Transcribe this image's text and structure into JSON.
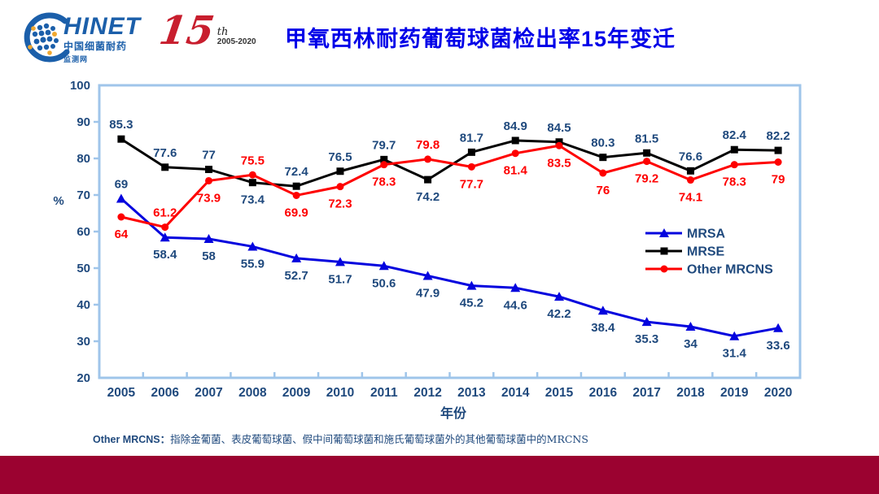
{
  "header": {
    "logo": {
      "brand": "HINET",
      "subtitle1": "中国细菌耐药",
      "subtitle2": "监测网",
      "anniversary_number": "15",
      "anniversary_suffix": "th",
      "anniversary_years": "2005-2020"
    },
    "title": "甲氧西林耐药葡萄球菌检出率15年变迁"
  },
  "chart_data": {
    "type": "line",
    "title": "甲氧西林耐药葡萄球菌检出率15年变迁",
    "xlabel": "年份",
    "ylabel": "%",
    "ylim": [
      20,
      100
    ],
    "yticks": [
      20,
      30,
      40,
      50,
      60,
      70,
      80,
      90,
      100
    ],
    "grid": false,
    "legend_position": "right-middle",
    "categories": [
      "2005",
      "2006",
      "2007",
      "2008",
      "2009",
      "2010",
      "2011",
      "2012",
      "2013",
      "2014",
      "2015",
      "2016",
      "2017",
      "2018",
      "2019",
      "2020"
    ],
    "series": [
      {
        "name": "MRSA",
        "color": "#0404DE",
        "marker": "triangle",
        "label_color": "#1F497D",
        "values": [
          69,
          58.4,
          58,
          55.9,
          52.7,
          51.7,
          50.6,
          47.9,
          45.2,
          44.6,
          42.2,
          38.4,
          35.3,
          34,
          31.4,
          33.6
        ],
        "label_side": [
          "above",
          "below",
          "below",
          "below",
          "below",
          "below",
          "below",
          "below",
          "below",
          "below",
          "below",
          "below",
          "below",
          "below",
          "below",
          "below"
        ]
      },
      {
        "name": "MRSE",
        "color": "#000000",
        "marker": "square",
        "label_color": "#1F497D",
        "values": [
          85.3,
          77.6,
          77,
          73.4,
          72.4,
          76.5,
          79.7,
          74.2,
          81.7,
          84.9,
          84.5,
          80.3,
          81.5,
          76.6,
          82.4,
          82.2
        ],
        "label_side": [
          "above",
          "above",
          "above",
          "below",
          "above",
          "above",
          "above",
          "below",
          "above",
          "above",
          "above",
          "above",
          "above",
          "above",
          "above",
          "above"
        ]
      },
      {
        "name": "Other MRCNS",
        "color": "#FE0000",
        "marker": "circle",
        "label_color": "#FE0000",
        "values": [
          64,
          61.2,
          73.9,
          75.5,
          69.9,
          72.3,
          78.3,
          79.8,
          77.7,
          81.4,
          83.5,
          76,
          79.2,
          74.1,
          78.3,
          79
        ],
        "label_side": [
          "below",
          "above",
          "below",
          "above",
          "below",
          "below",
          "below",
          "above",
          "below",
          "below",
          "below",
          "below",
          "below",
          "below",
          "below",
          "below"
        ]
      }
    ]
  },
  "footer": {
    "note_prefix": "Other MRCNS：",
    "note_body": "指除金葡菌、表皮葡萄球菌、假中间葡萄球菌和施氏葡萄球菌外的其他葡萄球菌中的MRCNS"
  },
  "colors": {
    "axis_border": "#9FC5EA",
    "tick_label": "#1F497D",
    "title_blue": "#0000E8",
    "footer_bar": "#9B0230"
  }
}
